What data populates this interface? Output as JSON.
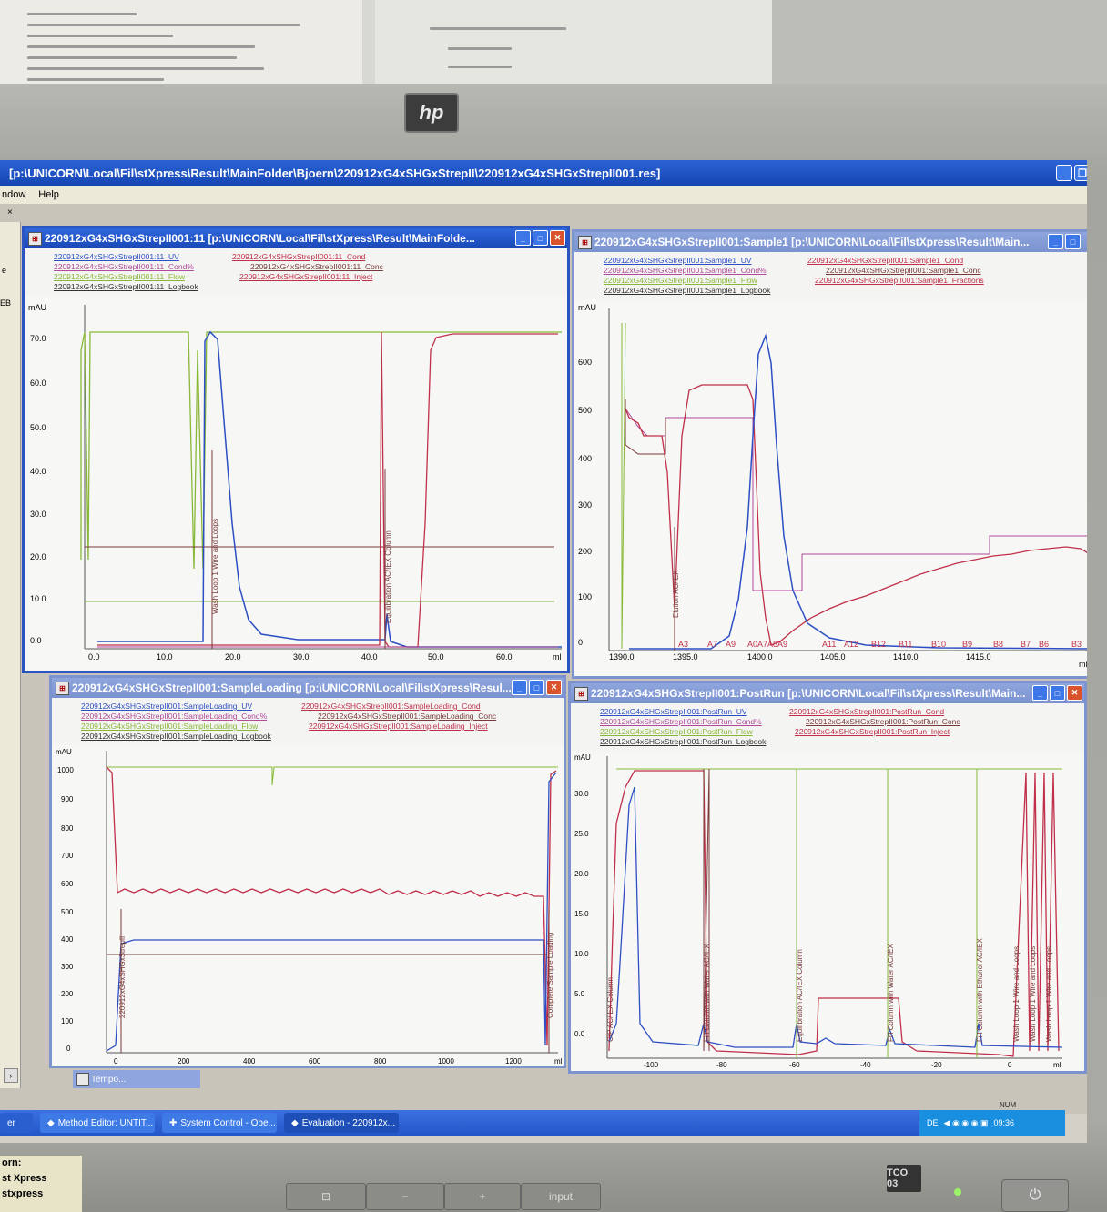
{
  "window": {
    "title": "[p:\\UNICORN\\Local\\Fil\\stXpress\\Result\\MainFolder\\Bjoern\\220912xG4xSHGxStrepII\\220912xG4xSHGxStrepII001.res]",
    "menu": [
      "ndow",
      "Help"
    ]
  },
  "left_panel": {
    "labels": [
      "e",
      "EB"
    ]
  },
  "panels": [
    {
      "title": "220912xG4xSHGxStrepII001:11    [p:\\UNICORN\\Local\\Fil\\stXpress\\Result\\MainFolde...",
      "legend": [
        {
          "text": "220912xG4xSHGxStrepII001:11_UV",
          "color": "#2d4fc4"
        },
        {
          "text": "220912xG4xSHGxStrepII001:11_Cond",
          "color": "#c0304a"
        },
        {
          "text": "220912xG4xSHGxStrepII001:11_Cond%",
          "color": "#b04a9a"
        },
        {
          "text": "220912xG4xSHGxStrepII001:11_Conc",
          "color": "#7a3a3a"
        },
        {
          "text": "220912xG4xSHGxStrepII001:11_Flow",
          "color": "#88b838"
        },
        {
          "text": "220912xG4xSHGxStrepII001:11_Inject",
          "color": "#c0304a"
        },
        {
          "text": "220912xG4xSHGxStrepII001:11_Logbook",
          "color": "#333333"
        }
      ],
      "y_unit": "mAU",
      "y_ticks": [
        "70.0",
        "60.0",
        "50.0",
        "40.0",
        "30.0",
        "20.0",
        "10.0",
        "0.0"
      ],
      "x_ticks": [
        "0.0",
        "10.0",
        "20.0",
        "30.0",
        "40.0",
        "50.0",
        "60.0"
      ],
      "x_unit": "ml",
      "annotations": [
        "Wash Loop 1 Wire and Loops",
        "Equilibration AC/IEX Column"
      ]
    },
    {
      "title": "220912xG4xSHGxStrepII001:Sample1    [p:\\UNICORN\\Local\\Fil\\stXpress\\Result\\Main...",
      "legend": [
        {
          "text": "220912xG4xSHGxStrepII001:Sample1_UV",
          "color": "#2d4fc4"
        },
        {
          "text": "220912xG4xSHGxStrepII001:Sample1_Cond",
          "color": "#c0304a"
        },
        {
          "text": "220912xG4xSHGxStrepII001:Sample1_Cond%",
          "color": "#b04a9a"
        },
        {
          "text": "220912xG4xSHGxStrepII001:Sample1_Conc",
          "color": "#7a3a3a"
        },
        {
          "text": "220912xG4xSHGxStrepII001:Sample1_Flow",
          "color": "#88b838"
        },
        {
          "text": "220912xG4xSHGxStrepII001:Sample1_Fractions",
          "color": "#c0304a"
        },
        {
          "text": "220912xG4xSHGxStrepII001:Sample1_Logbook",
          "color": "#333333"
        }
      ],
      "y_unit": "mAU",
      "y_ticks": [
        "600",
        "500",
        "400",
        "300",
        "200",
        "100",
        "0"
      ],
      "x_ticks": [
        "1390.0",
        "1395.0",
        "1400.0",
        "1405.0",
        "1410.0",
        "1415.0"
      ],
      "x_unit": "ml",
      "fractions": [
        "A3",
        "A7",
        "A9",
        "A0A7A8A9",
        "A11",
        "A12",
        "B12",
        "B11",
        "B10",
        "B9",
        "B8",
        "B7",
        "B6",
        "B3"
      ],
      "annotations": [
        "Elution AC/IEX"
      ]
    },
    {
      "title": "220912xG4xSHGxStrepII001:SampleLoading    [p:\\UNICORN\\Local\\Fil\\stXpress\\Resul...",
      "legend": [
        {
          "text": "220912xG4xSHGxStrepII001:SampleLoading_UV",
          "color": "#2d4fc4"
        },
        {
          "text": "220912xG4xSHGxStrepII001:SampleLoading_Cond",
          "color": "#c0304a"
        },
        {
          "text": "220912xG4xSHGxStrepII001:SampleLoading_Cond%",
          "color": "#b04a9a"
        },
        {
          "text": "220912xG4xSHGxStrepII001:SampleLoading_Conc",
          "color": "#7a3a3a"
        },
        {
          "text": "220912xG4xSHGxStrepII001:SampleLoading_Flow",
          "color": "#88b838"
        },
        {
          "text": "220912xG4xSHGxStrepII001:SampleLoading_Inject",
          "color": "#c0304a"
        },
        {
          "text": "220912xG4xSHGxStrepII001:SampleLoading_Logbook",
          "color": "#333333"
        }
      ],
      "y_unit": "mAU",
      "y_ticks": [
        "1000",
        "900",
        "800",
        "700",
        "600",
        "500",
        "400",
        "300",
        "200",
        "100",
        "0"
      ],
      "x_ticks": [
        "0",
        "200",
        "400",
        "600",
        "800",
        "1000",
        "1200"
      ],
      "x_unit": "ml",
      "annotations": [
        "220912xG4xSHGxStrepII",
        "Complete Sample Loading"
      ]
    },
    {
      "title": "220912xG4xSHGxStrepII001:PostRun    [p:\\UNICORN\\Local\\Fil\\stXpress\\Result\\Main...",
      "legend": [
        {
          "text": "220912xG4xSHGxStrepII001:PostRun_UV",
          "color": "#2d4fc4"
        },
        {
          "text": "220912xG4xSHGxStrepII001:PostRun_Cond",
          "color": "#c0304a"
        },
        {
          "text": "220912xG4xSHGxStrepII001:PostRun_Cond%",
          "color": "#b04a9a"
        },
        {
          "text": "220912xG4xSHGxStrepII001:PostRun_Conc",
          "color": "#7a3a3a"
        },
        {
          "text": "220912xG4xSHGxStrepII001:PostRun_Flow",
          "color": "#88b838"
        },
        {
          "text": "220912xG4xSHGxStrepII001:PostRun_Inject",
          "color": "#c0304a"
        },
        {
          "text": "220912xG4xSHGxStrepII001:PostRun_Logbook",
          "color": "#333333"
        }
      ],
      "y_unit": "mAU",
      "y_ticks": [
        "30.0",
        "25.0",
        "20.0",
        "15.0",
        "10.0",
        "5.0",
        "0.0"
      ],
      "x_ticks": [
        "-100",
        "-80",
        "-60",
        "-40",
        "-20",
        "0"
      ],
      "x_unit": "ml",
      "annotations": [
        "CIP AC/IEX Column",
        "Fill Column with Water AC/IEX",
        "Equilibration AC/IEX Column",
        "Fill Column with Water AC/IEX",
        "Fill Column with Ethanol AC/IEX",
        "Wash Loop 1 Wire and Loops",
        "Wash Loop 1 Wire and Loops",
        "Wash Loop 1 Wire and Loops"
      ]
    }
  ],
  "temp_window": {
    "title": "Tempo..."
  },
  "taskbar": {
    "items": [
      "er",
      "Method Editor: UNTIT...",
      "System Control - Obe...",
      "Evaluation - 220912x..."
    ],
    "tray_lang": "DE",
    "clock": "09:36",
    "num_indicator": "NUM"
  },
  "monitor": {
    "brand": "hp",
    "buttons": [
      "⊟",
      "−",
      "+",
      "input"
    ],
    "power_symbol": "⏻",
    "badge": "TCO 03",
    "sticker": [
      "orn:",
      "st Xpress",
      "stxpress"
    ]
  },
  "colors": {
    "uv": "#2d4fc4",
    "cond": "#c0304a",
    "cond_pct": "#b04a9a",
    "conc": "#7a3a3a",
    "flow": "#88b838",
    "titlebar": "#2155c8"
  }
}
